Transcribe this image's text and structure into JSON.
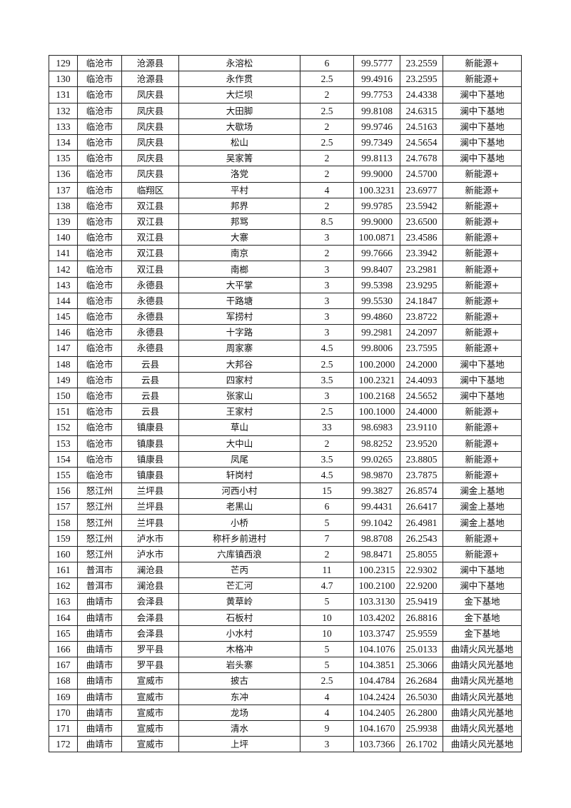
{
  "table": {
    "rows": [
      [
        "129",
        "临沧市",
        "沧源县",
        "永溶松",
        "6",
        "99.5777",
        "23.2559",
        "新能源+"
      ],
      [
        "130",
        "临沧市",
        "沧源县",
        "永作贯",
        "2.5",
        "99.4916",
        "23.2595",
        "新能源+"
      ],
      [
        "131",
        "临沧市",
        "凤庆县",
        "大烂坝",
        "2",
        "99.7753",
        "24.4338",
        "澜中下基地"
      ],
      [
        "132",
        "临沧市",
        "凤庆县",
        "大田脚",
        "2.5",
        "99.8108",
        "24.6315",
        "澜中下基地"
      ],
      [
        "133",
        "临沧市",
        "凤庆县",
        "大歇场",
        "2",
        "99.9746",
        "24.5163",
        "澜中下基地"
      ],
      [
        "134",
        "临沧市",
        "凤庆县",
        "松山",
        "2.5",
        "99.7349",
        "24.5654",
        "澜中下基地"
      ],
      [
        "135",
        "临沧市",
        "凤庆县",
        "吴家箐",
        "2",
        "99.8113",
        "24.7678",
        "澜中下基地"
      ],
      [
        "136",
        "临沧市",
        "凤庆县",
        "洛党",
        "2",
        "99.9000",
        "24.5700",
        "新能源+"
      ],
      [
        "137",
        "临沧市",
        "临翔区",
        "平村",
        "4",
        "100.3231",
        "23.6977",
        "新能源+"
      ],
      [
        "138",
        "临沧市",
        "双江县",
        "邦界",
        "2",
        "99.9785",
        "23.5942",
        "新能源+"
      ],
      [
        "139",
        "临沧市",
        "双江县",
        "邦骂",
        "8.5",
        "99.9000",
        "23.6500",
        "新能源+"
      ],
      [
        "140",
        "临沧市",
        "双江县",
        "大寨",
        "3",
        "100.0871",
        "23.4586",
        "新能源+"
      ],
      [
        "141",
        "临沧市",
        "双江县",
        "南京",
        "2",
        "99.7666",
        "23.3942",
        "新能源+"
      ],
      [
        "142",
        "临沧市",
        "双江县",
        "南榔",
        "3",
        "99.8407",
        "23.2981",
        "新能源+"
      ],
      [
        "143",
        "临沧市",
        "永德县",
        "大平掌",
        "3",
        "99.5398",
        "23.9295",
        "新能源+"
      ],
      [
        "144",
        "临沧市",
        "永德县",
        "干路塘",
        "3",
        "99.5530",
        "24.1847",
        "新能源+"
      ],
      [
        "145",
        "临沧市",
        "永德县",
        "军捞村",
        "3",
        "99.4860",
        "23.8722",
        "新能源+"
      ],
      [
        "146",
        "临沧市",
        "永德县",
        "十字路",
        "3",
        "99.2981",
        "24.2097",
        "新能源+"
      ],
      [
        "147",
        "临沧市",
        "永德县",
        "周家寨",
        "4.5",
        "99.8006",
        "23.7595",
        "新能源+"
      ],
      [
        "148",
        "临沧市",
        "云县",
        "大邦谷",
        "2.5",
        "100.2000",
        "24.2000",
        "澜中下基地"
      ],
      [
        "149",
        "临沧市",
        "云县",
        "四家村",
        "3.5",
        "100.2321",
        "24.4093",
        "澜中下基地"
      ],
      [
        "150",
        "临沧市",
        "云县",
        "张家山",
        "3",
        "100.2168",
        "24.5652",
        "澜中下基地"
      ],
      [
        "151",
        "临沧市",
        "云县",
        "王家村",
        "2.5",
        "100.1000",
        "24.4000",
        "新能源+"
      ],
      [
        "152",
        "临沧市",
        "镇康县",
        "草山",
        "33",
        "98.6983",
        "23.9110",
        "新能源+"
      ],
      [
        "153",
        "临沧市",
        "镇康县",
        "大中山",
        "2",
        "98.8252",
        "23.9520",
        "新能源+"
      ],
      [
        "154",
        "临沧市",
        "镇康县",
        "凤尾",
        "3.5",
        "99.0265",
        "23.8805",
        "新能源+"
      ],
      [
        "155",
        "临沧市",
        "镇康县",
        "轩岗村",
        "4.5",
        "98.9870",
        "23.7875",
        "新能源+"
      ],
      [
        "156",
        "怒江州",
        "兰坪县",
        "河西小村",
        "15",
        "99.3827",
        "26.8574",
        "澜金上基地"
      ],
      [
        "157",
        "怒江州",
        "兰坪县",
        "老黑山",
        "6",
        "99.4431",
        "26.6417",
        "澜金上基地"
      ],
      [
        "158",
        "怒江州",
        "兰坪县",
        "小桥",
        "5",
        "99.1042",
        "26.4981",
        "澜金上基地"
      ],
      [
        "159",
        "怒江州",
        "泸水市",
        "称杆乡前进村",
        "7",
        "98.8708",
        "26.2543",
        "新能源+"
      ],
      [
        "160",
        "怒江州",
        "泸水市",
        "六库镇西浪",
        "2",
        "98.8471",
        "25.8055",
        "新能源+"
      ],
      [
        "161",
        "普洱市",
        "澜沧县",
        "芒丙",
        "11",
        "100.2315",
        "22.9302",
        "澜中下基地"
      ],
      [
        "162",
        "普洱市",
        "澜沧县",
        "芒汇河",
        "4.7",
        "100.2100",
        "22.9200",
        "澜中下基地"
      ],
      [
        "163",
        "曲靖市",
        "会泽县",
        "黄草岭",
        "5",
        "103.3130",
        "25.9419",
        "金下基地"
      ],
      [
        "164",
        "曲靖市",
        "会泽县",
        "石板村",
        "10",
        "103.4202",
        "26.8816",
        "金下基地"
      ],
      [
        "165",
        "曲靖市",
        "会泽县",
        "小水村",
        "10",
        "103.3747",
        "25.9559",
        "金下基地"
      ],
      [
        "166",
        "曲靖市",
        "罗平县",
        "木格冲",
        "5",
        "104.1076",
        "25.0133",
        "曲靖火风光基地"
      ],
      [
        "167",
        "曲靖市",
        "罗平县",
        "岩头寨",
        "5",
        "104.3851",
        "25.3066",
        "曲靖火风光基地"
      ],
      [
        "168",
        "曲靖市",
        "宣威市",
        "披古",
        "2.5",
        "104.4784",
        "26.2684",
        "曲靖火风光基地"
      ],
      [
        "169",
        "曲靖市",
        "宣威市",
        "东冲",
        "4",
        "104.2424",
        "26.5030",
        "曲靖火风光基地"
      ],
      [
        "170",
        "曲靖市",
        "宣威市",
        "龙场",
        "4",
        "104.2405",
        "26.2800",
        "曲靖火风光基地"
      ],
      [
        "171",
        "曲靖市",
        "宣威市",
        "清水",
        "9",
        "104.1670",
        "25.9938",
        "曲靖火风光基地"
      ],
      [
        "172",
        "曲靖市",
        "宣威市",
        "上坪",
        "3",
        "103.7366",
        "26.1702",
        "曲靖火风光基地"
      ]
    ]
  }
}
